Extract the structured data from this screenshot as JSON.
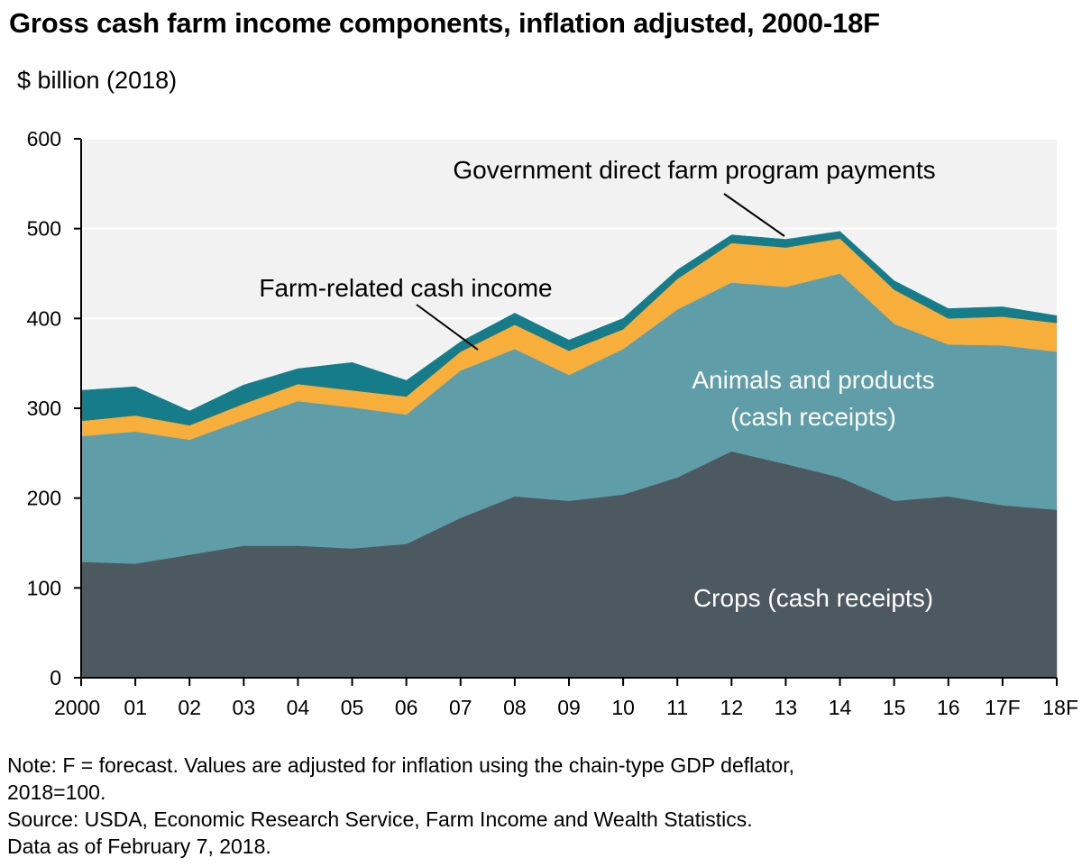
{
  "title": "Gross cash farm income components, inflation adjusted, 2000-18F",
  "unit_label": "$ billion (2018)",
  "notes": [
    "Note: F = forecast. Values are adjusted for inflation using the chain-type GDP deflator,",
    "2018=100.",
    "Source: USDA, Economic Research Service, Farm Income and Wealth Statistics.",
    "Data as of February 7, 2018."
  ],
  "colors": {
    "plot_background": "#f2f2f2",
    "gridline": "#ffffff",
    "crops": "#4d5961",
    "animals": "#5f9ea8",
    "farm_related": "#f7ae3b",
    "government": "#167c8a"
  },
  "chart_data": {
    "type": "area",
    "stacked": true,
    "x": [
      "2000",
      "01",
      "02",
      "03",
      "04",
      "05",
      "06",
      "07",
      "08",
      "09",
      "10",
      "11",
      "12",
      "13",
      "14",
      "15",
      "16",
      "17F",
      "18F"
    ],
    "ylim": [
      0,
      600
    ],
    "yticks": [
      0,
      100,
      200,
      300,
      400,
      500,
      600
    ],
    "grid": true,
    "series": [
      {
        "name": "Crops (cash receipts)",
        "color_key": "crops",
        "values": [
          129,
          127,
          137,
          147,
          147,
          144,
          149,
          178,
          202,
          197,
          204,
          223,
          252,
          238,
          223,
          197,
          202,
          192,
          187
        ]
      },
      {
        "name": "Animals and products (cash receipts)",
        "color_key": "animals",
        "values": [
          140,
          147,
          128,
          140,
          161,
          157,
          144,
          164,
          164,
          140,
          162,
          187,
          188,
          197,
          227,
          197,
          169,
          178,
          176
        ]
      },
      {
        "name": "Farm-related cash income",
        "color_key": "farm_related",
        "values": [
          17,
          18,
          16,
          18,
          19,
          19,
          20,
          21,
          27,
          27,
          22,
          34,
          44,
          44,
          39,
          38,
          29,
          32,
          32
        ]
      },
      {
        "name": "Government direct farm program payments",
        "color_key": "government",
        "values": [
          34,
          32,
          16,
          21,
          17,
          31,
          18,
          11,
          13,
          12,
          12,
          10,
          9,
          9,
          8,
          10,
          11,
          11,
          8
        ]
      }
    ],
    "annotations": [
      {
        "text": "Government direct farm program payments",
        "color": "#000000"
      },
      {
        "text": "Farm-related cash income",
        "color": "#000000"
      },
      {
        "text": "Animals and products",
        "color": "#ffffff"
      },
      {
        "text": "(cash receipts)",
        "color": "#ffffff"
      },
      {
        "text": "Crops (cash receipts)",
        "color": "#ffffff"
      }
    ]
  }
}
